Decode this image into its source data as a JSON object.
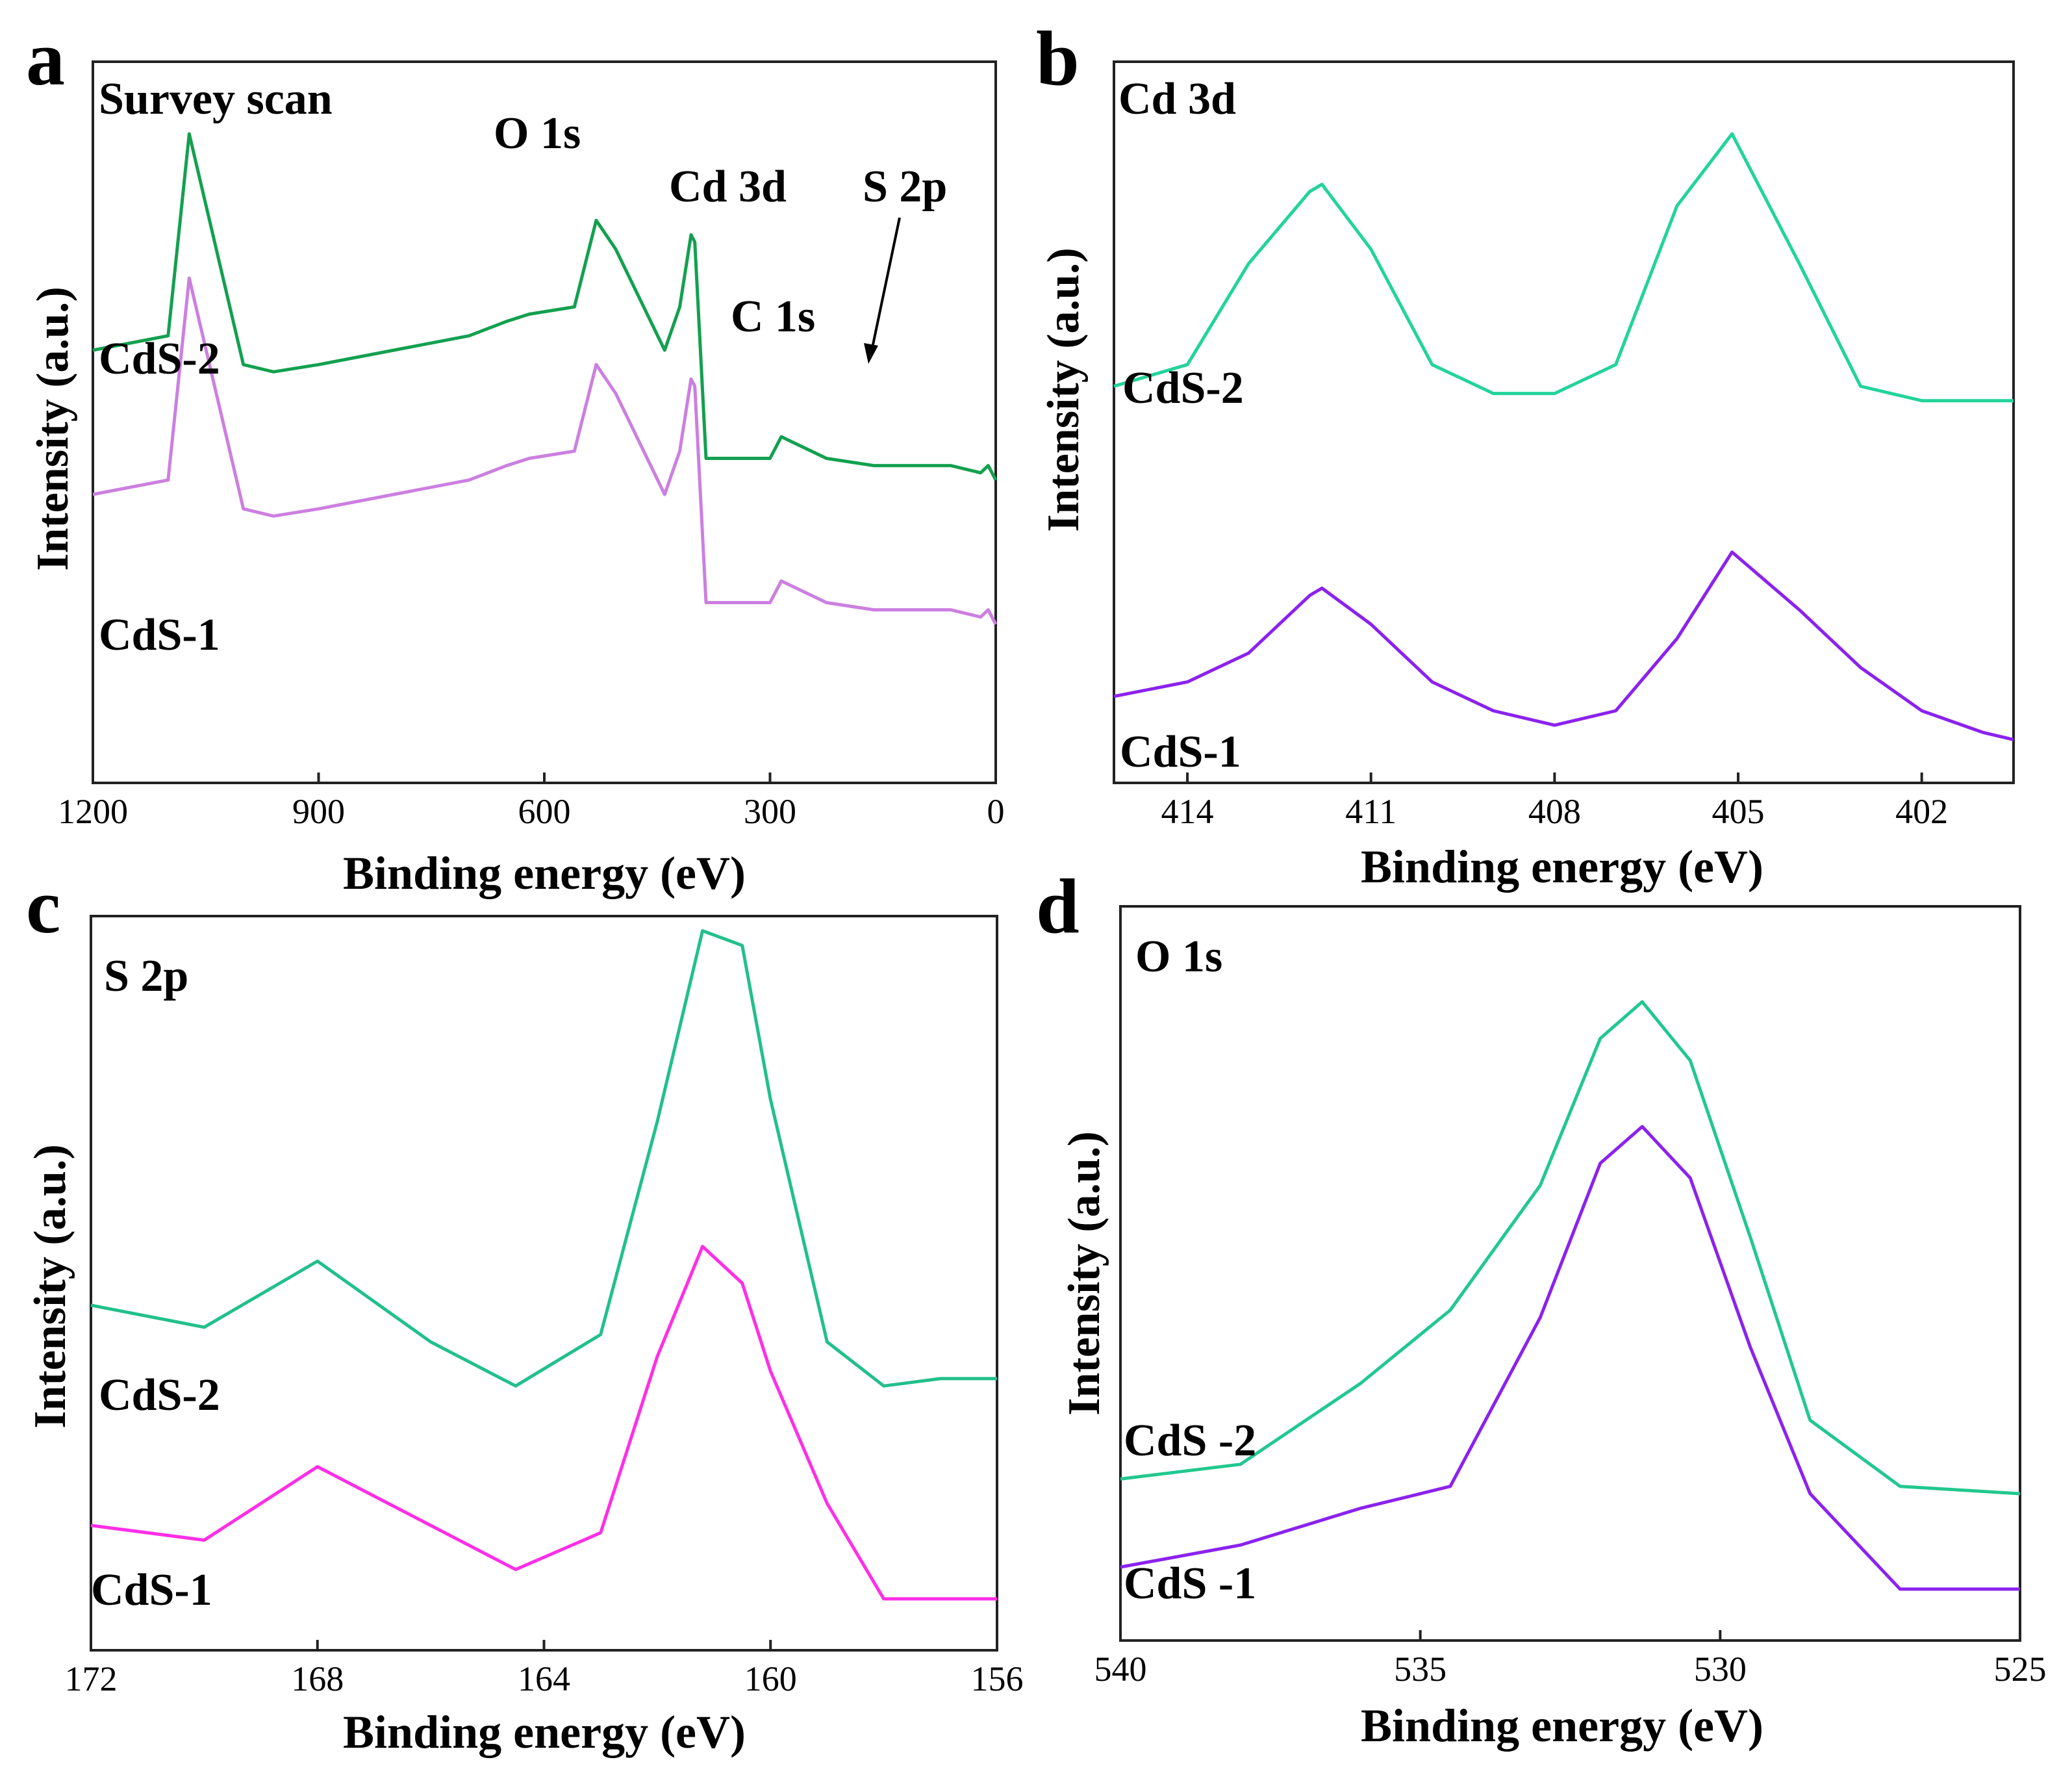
{
  "figure": {
    "panels": [
      {
        "id": "a",
        "label": "a",
        "title": "Survey scan",
        "xlabel": "Binding energy (eV)",
        "ylabel": "Intensity (a.u.)",
        "xlim": [
          1200,
          0
        ],
        "xticks": [
          1200,
          900,
          600,
          300,
          0
        ],
        "annotations": [
          "O 1s",
          "Cd 3d",
          "C 1s",
          "S 2p"
        ],
        "series": [
          {
            "name": "CdS-2",
            "color": "#13a050"
          },
          {
            "name": "CdS-1",
            "color": "#cc7fe0"
          }
        ]
      },
      {
        "id": "b",
        "label": "b",
        "title": "Cd 3d",
        "xlabel": "Binding energy (eV)",
        "ylabel": "Intensity (a.u.)",
        "xlim": [
          415.2,
          400.5
        ],
        "xticks": [
          414,
          411,
          408,
          405,
          402
        ],
        "series": [
          {
            "name": "CdS-2",
            "color": "#22d49a"
          },
          {
            "name": "CdS-1",
            "color": "#8b22ee"
          }
        ]
      },
      {
        "id": "c",
        "label": "c",
        "title": "S 2p",
        "xlabel": "Binding energy (eV)",
        "ylabel": "Intensity (a.u.)",
        "xlim": [
          172,
          156
        ],
        "xticks": [
          172,
          168,
          164,
          160,
          156
        ],
        "series": [
          {
            "name": "CdS-2",
            "color": "#22c08a"
          },
          {
            "name": "CdS-1",
            "color": "#ff2ee6"
          }
        ]
      },
      {
        "id": "d",
        "label": "d",
        "title": "O 1s",
        "xlabel": "Binding energy (eV)",
        "ylabel": "Intensity (a.u.)",
        "xlim": [
          540,
          525
        ],
        "xticks": [
          540,
          535,
          530,
          525
        ],
        "series": [
          {
            "name": "CdS -2",
            "color": "#22c88e"
          },
          {
            "name": "CdS -1",
            "color": "#8b22ee"
          }
        ]
      }
    ]
  },
  "chart_data": [
    {
      "type": "line",
      "panel": "a",
      "title": "Survey scan",
      "xlabel": "Binding energy (eV)",
      "ylabel": "Intensity (a.u.)",
      "xlim": [
        1200,
        0
      ],
      "x": [
        1200,
        1100,
        1072,
        1000,
        960,
        900,
        800,
        700,
        650,
        620,
        560,
        531,
        505,
        440,
        420,
        405,
        400,
        385,
        300,
        285,
        225,
        162,
        60,
        20,
        10,
        0
      ],
      "series": [
        {
          "name": "CdS-2",
          "values": [
            0.6,
            0.62,
            0.9,
            0.58,
            0.57,
            0.58,
            0.6,
            0.62,
            0.64,
            0.65,
            0.66,
            0.78,
            0.74,
            0.6,
            0.66,
            0.76,
            0.75,
            0.45,
            0.45,
            0.48,
            0.45,
            0.44,
            0.44,
            0.43,
            0.44,
            0.42
          ]
        },
        {
          "name": "CdS-1",
          "values": [
            0.4,
            0.42,
            0.7,
            0.38,
            0.37,
            0.38,
            0.4,
            0.42,
            0.44,
            0.45,
            0.46,
            0.58,
            0.54,
            0.4,
            0.46,
            0.56,
            0.55,
            0.25,
            0.25,
            0.28,
            0.25,
            0.24,
            0.24,
            0.23,
            0.24,
            0.22
          ]
        }
      ]
    },
    {
      "type": "line",
      "panel": "b",
      "title": "Cd 3d",
      "xlabel": "Binding energy (eV)",
      "ylabel": "Intensity (a.u.)",
      "xlim": [
        415.2,
        400.5
      ],
      "x": [
        415.2,
        414,
        413,
        412,
        411.8,
        411,
        410,
        409,
        408,
        407,
        406,
        405.1,
        404,
        403,
        402,
        401,
        400.5
      ],
      "series": [
        {
          "name": "CdS-2",
          "values": [
            0.55,
            0.58,
            0.72,
            0.82,
            0.83,
            0.74,
            0.58,
            0.54,
            0.54,
            0.58,
            0.8,
            0.9,
            0.72,
            0.55,
            0.53,
            0.53,
            0.53
          ]
        },
        {
          "name": "CdS-1",
          "values": [
            0.12,
            0.14,
            0.18,
            0.26,
            0.27,
            0.22,
            0.14,
            0.1,
            0.08,
            0.1,
            0.2,
            0.32,
            0.24,
            0.16,
            0.1,
            0.07,
            0.06
          ]
        }
      ]
    },
    {
      "type": "line",
      "panel": "c",
      "title": "S 2p",
      "xlabel": "Binding energy (eV)",
      "ylabel": "Intensity (a.u.)",
      "xlim": [
        172,
        156
      ],
      "x": [
        172,
        170,
        168,
        166,
        164.5,
        163,
        162,
        161.2,
        160.5,
        160,
        159,
        158,
        157,
        156
      ],
      "series": [
        {
          "name": "CdS-2",
          "values": [
            0.47,
            0.44,
            0.53,
            0.42,
            0.36,
            0.43,
            0.72,
            0.98,
            0.96,
            0.75,
            0.42,
            0.36,
            0.37,
            0.37
          ]
        },
        {
          "name": "CdS-1",
          "values": [
            0.17,
            0.15,
            0.25,
            0.17,
            0.11,
            0.16,
            0.4,
            0.55,
            0.5,
            0.38,
            0.2,
            0.07,
            0.07,
            0.07
          ]
        }
      ]
    },
    {
      "type": "line",
      "panel": "d",
      "title": "O 1s",
      "xlabel": "Binding energy (eV)",
      "ylabel": "Intensity (a.u.)",
      "xlim": [
        540,
        525
      ],
      "x": [
        540,
        538,
        536,
        534.5,
        533,
        532,
        531.3,
        530.5,
        529.5,
        528.5,
        527,
        525
      ],
      "series": [
        {
          "name": "CdS -2",
          "values": [
            0.22,
            0.24,
            0.35,
            0.45,
            0.62,
            0.82,
            0.87,
            0.79,
            0.55,
            0.3,
            0.21,
            0.2
          ]
        },
        {
          "name": "CdS -1",
          "values": [
            0.1,
            0.13,
            0.18,
            0.21,
            0.44,
            0.65,
            0.7,
            0.63,
            0.4,
            0.2,
            0.07,
            0.07
          ]
        }
      ]
    }
  ]
}
